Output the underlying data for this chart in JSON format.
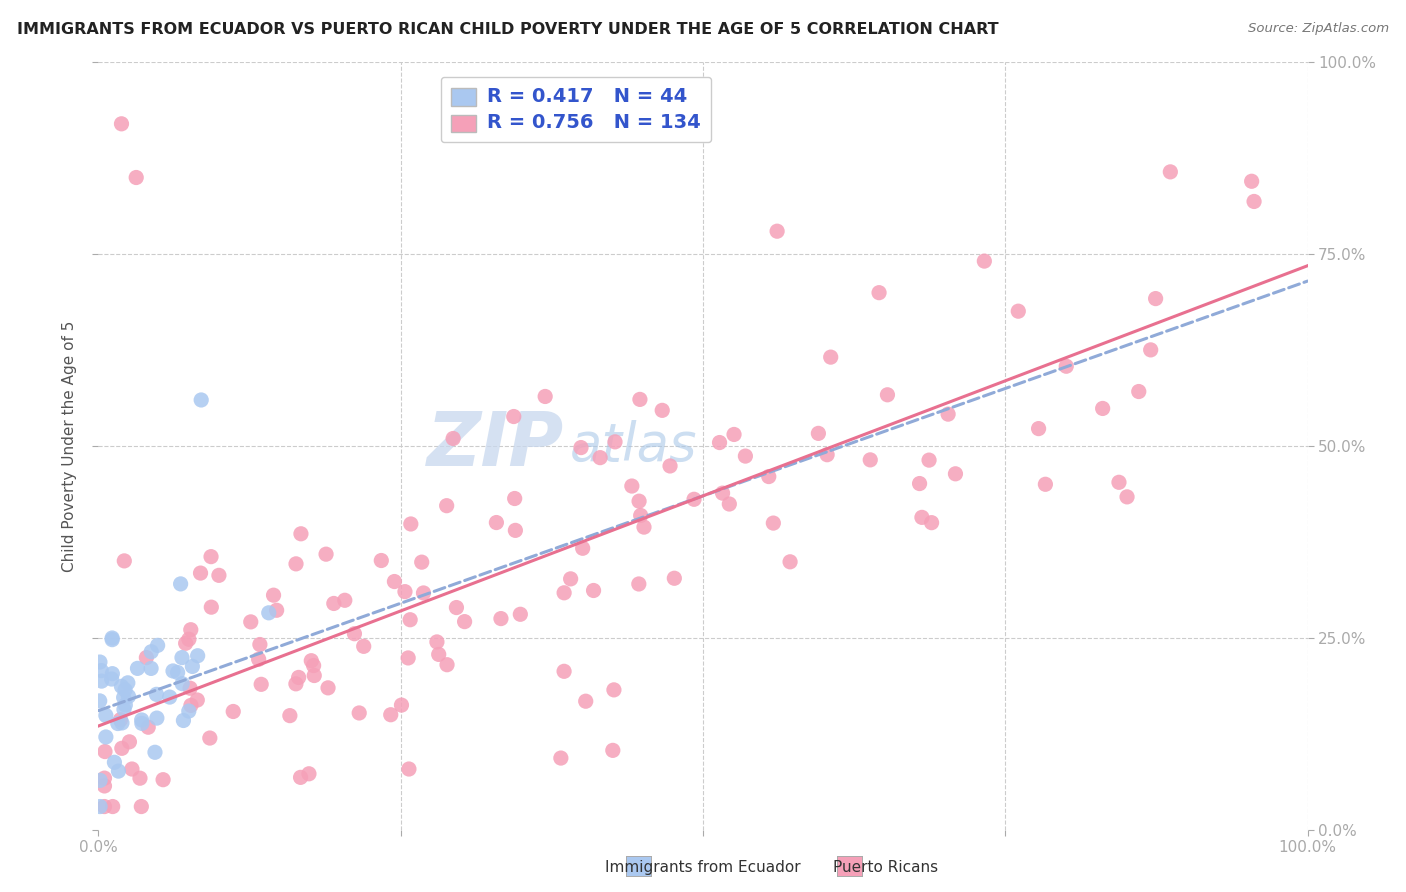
{
  "title": "IMMIGRANTS FROM ECUADOR VS PUERTO RICAN CHILD POVERTY UNDER THE AGE OF 5 CORRELATION CHART",
  "source": "Source: ZipAtlas.com",
  "ylabel": "Child Poverty Under the Age of 5",
  "series1_label": "Immigrants from Ecuador",
  "series2_label": "Puerto Ricans",
  "series1_R": 0.417,
  "series1_N": 44,
  "series2_R": 0.756,
  "series2_N": 134,
  "series1_color": "#aac8f0",
  "series2_color": "#f5a0b8",
  "series1_edge": "#aac8f0",
  "series2_edge": "#f5a0b8",
  "trend1_color": "#90aad8",
  "trend2_color": "#e87090",
  "legend_text_color": "#3355cc",
  "watermark_zip_color": "#c8d8ee",
  "watermark_atlas_color": "#aac8e8",
  "bg_color": "#ffffff",
  "grid_color": "#cccccc",
  "title_color": "#222222",
  "source_color": "#777777",
  "ylabel_color": "#555555",
  "tick_color": "#3355cc",
  "xlim": [
    0,
    1
  ],
  "ylim": [
    0,
    1
  ],
  "trend1_intercept": 0.155,
  "trend1_slope": 0.56,
  "trend2_intercept": 0.135,
  "trend2_slope": 0.6
}
